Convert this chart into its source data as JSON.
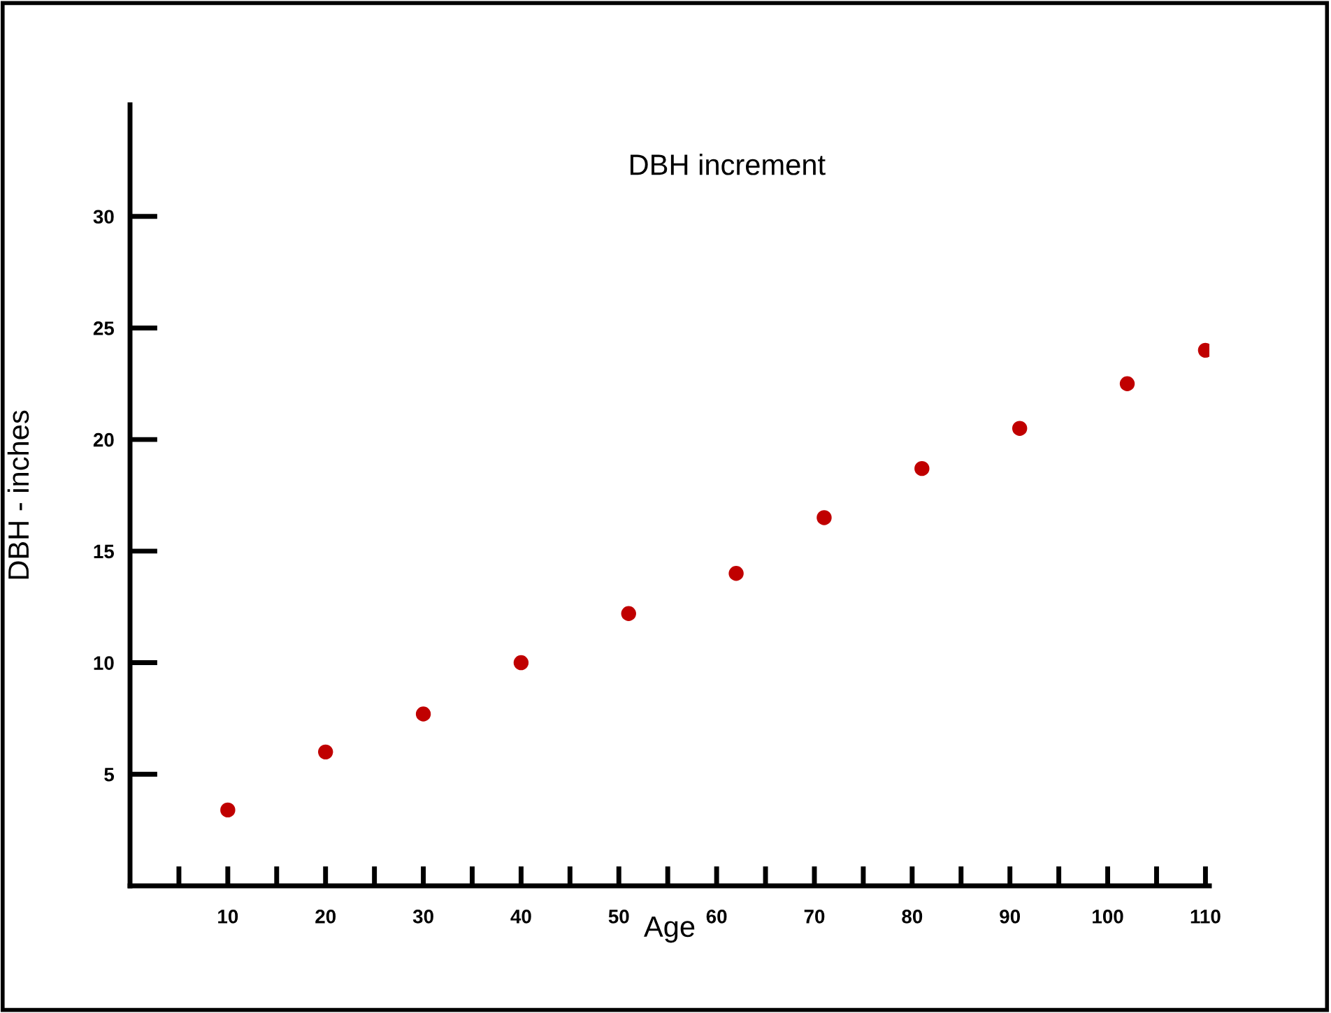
{
  "chart_data": {
    "type": "scatter",
    "title": "DBH increment",
    "xlabel": "Age",
    "ylabel": "DBH - inches",
    "x": [
      10,
      20,
      30,
      40,
      51,
      62,
      71,
      81,
      91,
      102,
      110
    ],
    "series": [
      {
        "color": "#c00000",
        "values": [
          3.4,
          6.0,
          7.7,
          10.0,
          12.2,
          14.0,
          16.5,
          18.7,
          20.5,
          22.5,
          24.0
        ]
      }
    ],
    "xlim": [
      0,
      110.4
    ],
    "ylim": [
      0,
      35
    ],
    "xticks": [
      {
        "value": 5,
        "label": null
      },
      10,
      {
        "value": 15,
        "label": null
      },
      20,
      {
        "value": 25,
        "label": null
      },
      30,
      {
        "value": 35,
        "label": null
      },
      40,
      {
        "value": 45,
        "label": null
      },
      50,
      {
        "value": 55,
        "label": null
      },
      60,
      {
        "value": 65,
        "label": null
      },
      70,
      {
        "value": 75,
        "label": null
      },
      80,
      {
        "value": 85,
        "label": null
      },
      90,
      {
        "value": 95,
        "label": null
      },
      100,
      {
        "value": 105,
        "label": null
      },
      110
    ],
    "yticks": [
      5,
      10,
      15,
      20,
      25,
      30
    ],
    "marker": "circle",
    "grid": false
  }
}
